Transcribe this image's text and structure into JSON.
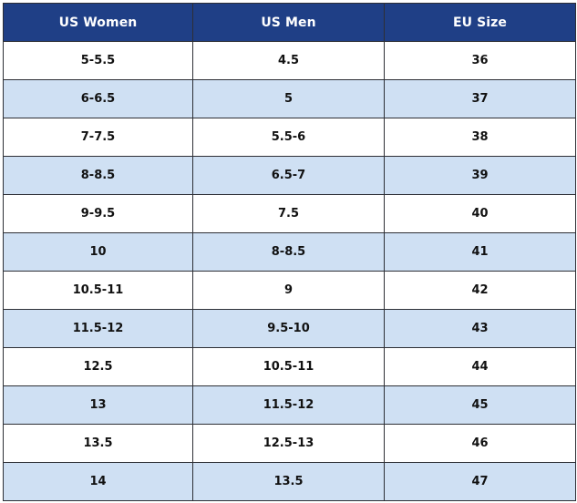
{
  "table": {
    "headers": [
      "US Women",
      "US Men",
      "EU Size"
    ],
    "rows": [
      [
        "5-5.5",
        "4.5",
        "36"
      ],
      [
        "6-6.5",
        "5",
        "37"
      ],
      [
        "7-7.5",
        "5.5-6",
        "38"
      ],
      [
        "8-8.5",
        "6.5-7",
        "39"
      ],
      [
        "9-9.5",
        "7.5",
        "40"
      ],
      [
        "10",
        "8-8.5",
        "41"
      ],
      [
        "10.5-11",
        "9",
        "42"
      ],
      [
        "11.5-12",
        "9.5-10",
        "43"
      ],
      [
        "12.5",
        "10.5-11",
        "44"
      ],
      [
        "13",
        "11.5-12",
        "45"
      ],
      [
        "13.5",
        "12.5-13",
        "46"
      ],
      [
        "14",
        "13.5",
        "47"
      ]
    ]
  },
  "colors": {
    "header_bg": "#1f3f86",
    "header_text": "#ffffff",
    "stripe_bg": "#cfe0f3",
    "border": "#2d2f35"
  }
}
